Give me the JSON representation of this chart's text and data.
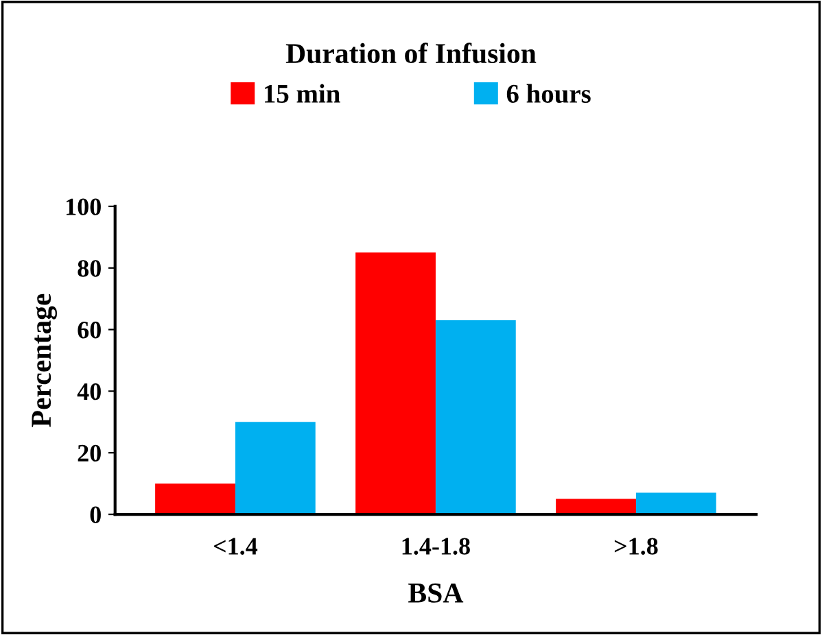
{
  "chart_data": {
    "type": "bar",
    "xlabel": "BSA",
    "ylabel": "Percentage",
    "legend_title": "Duration of Infusion",
    "categories": [
      "<1.4",
      "1.4-1.8",
      ">1.8"
    ],
    "series": [
      {
        "name": "15 min",
        "color": "#ff0000",
        "values": [
          10,
          85,
          5
        ]
      },
      {
        "name": "6 hours",
        "color": "#00b0f0",
        "values": [
          30,
          63,
          7
        ]
      }
    ],
    "ylim": [
      0,
      100
    ],
    "yticks": [
      0,
      20,
      40,
      60,
      80,
      100
    ],
    "grid": false,
    "legend": "top"
  }
}
